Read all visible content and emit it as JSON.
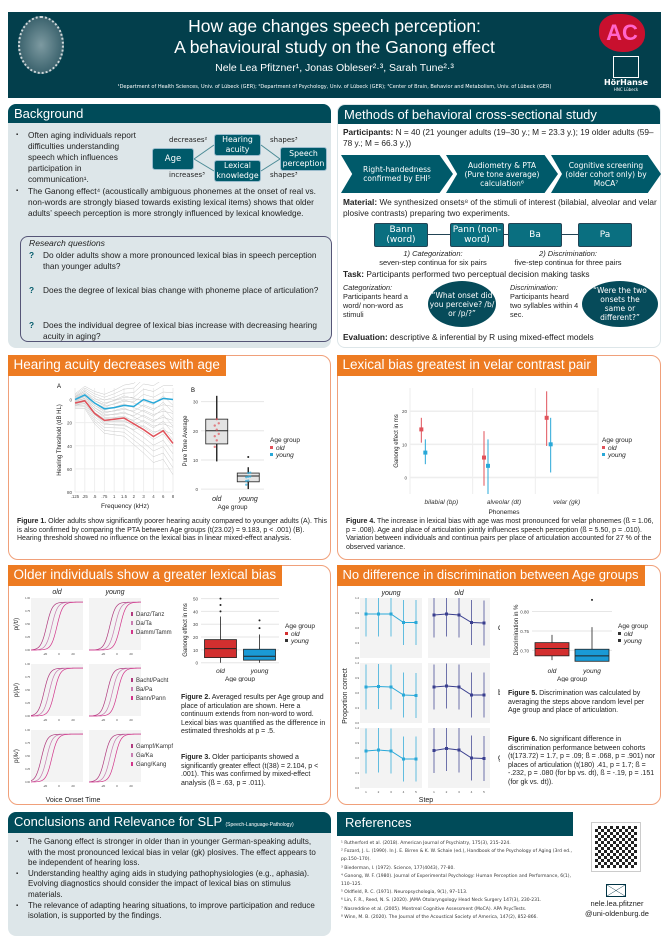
{
  "header": {
    "title_line1": "How age changes speech perception:",
    "title_line2": "A behavioural study on the Ganong effect",
    "authors": "Nele Lea Pfitzner¹, Jonas Obleser²·³, Sarah Tune²·³",
    "affiliations": "¹Department of Health Sciences, Univ. of Lübeck (GER); ²Department of Psychology, Univ. of Lübeck (GER); ³Center of Brain, Behavior and Metabolism, Univ. of Lübeck (GER)",
    "logo_left": "Universitas Lubecensis seal",
    "logo_right_ac": "AC",
    "logo_right_name": "HörHanse",
    "logo_right_sub": "HNC Lübeck"
  },
  "background": {
    "title": "Background",
    "bullets": [
      "Often aging individuals report difficulties understanding speech which influences participation in communication¹.",
      "The Ganong effect⁴ (acoustically ambiguous phonemes at the onset of real vs. non-words are strongly biased towards existing lexical items) shows that older adults’ speech perception is more strongly influenced by lexical knowledge."
    ],
    "diagram": {
      "age": "Age",
      "hearing": "Hearing acuity",
      "lexical": "Lexical knowledge",
      "speech": "Speech perception",
      "decreases": "decreases²",
      "increases": "increases³",
      "shapes_top": "shapes³",
      "shapes_bottom": "shapes³"
    },
    "rq_title": "Research questions",
    "questions": [
      "Do older adults show a more pronounced lexical bias in speech perception than younger adults?",
      "Does the degree of lexical bias change with phoneme place of articulation?",
      "Does the individual degree of lexical bias increase with decreasing hearing acuity in aging?"
    ],
    "q_marker": "?"
  },
  "methods": {
    "title": "Methods of behavioral cross-sectional study",
    "participants_label": "Participants:",
    "participants_text": "N = 40 (21 younger adults (19–30 y.; M = 23.3 y.); 19 older adults (59–78 y.; M = 66.3 y.))",
    "steps": [
      "Right-handedness confirmed by EHI⁵",
      "Audiometry & PTA (Pure tone average) calculation⁶",
      "Cognitive screening (older cohort only) by MoCA⁷"
    ],
    "material_label": "Material:",
    "material_text": "We synthesized onsets⁸ of the stimuli of interest (bilabial, alveolar and velar plosive contrasts) preparing two experiments.",
    "stimuli": [
      "Bann (word)",
      "Pann (non-word)",
      "Ba",
      "Pa"
    ],
    "exp1_title": "1) Categorization:",
    "exp1_desc": "seven-step continua for six pairs",
    "exp2_title": "2) Discrimination:",
    "exp2_desc": "five-step continua for three pairs",
    "task_label": "Task:",
    "task_text": "Participants performed two perceptual decision making tasks",
    "cat_title": "Categorization:",
    "cat_desc": "Participants heard a word/ non-word as stimuli",
    "cat_question": "“What onset did you perceive? /b/ or /p/?”",
    "dis_title": "Discrimination:",
    "dis_desc": "Participants heard two syllables within 4 sec.",
    "dis_question": "“Were the two onsets the same or different?”",
    "eval_label": "Evaluation:",
    "eval_text": "descriptive & inferential by R using mixed-effect models"
  },
  "hearing": {
    "title": "Hearing acuity decreases with age",
    "caption_bold": "Figure 1.",
    "caption": "Older adults show significantly poorer hearing acuity compared to younger adults (A). This is also confirmed by comparing the PTA between Age groups (t(23.02) = 9.183, p < .001) (B). Hearing threshold showed no influence on the lexical bias in linear mixed-effect analysis."
  },
  "lexical": {
    "title": "Lexical bias greatest in velar contrast pair",
    "caption_bold": "Figure 4.",
    "caption": "The increase in lexical bias with age was most pronounced for velar phonemes (ß = 1.06, p = .008). Age and place of articulation jointly influences speech perception (ß = 5.50, p = .010). Variation between individuals and continua pairs per place of articulation accounted for 27 % of the observed variance."
  },
  "older": {
    "title": "Older individuals show a greater lexical bias",
    "fig2_bold": "Figure 2.",
    "fig2": "Averaged results per Age group and place of articulation are shown. Here a continuum extends from non-word to word. Lexical bias was quantified as the difference in estimated thresholds at p = .5.",
    "fig3_bold": "Figure 3.",
    "fig3": "Older participants showed a significantly greater effect (t(38) = 2.104, p < .001). This was confirmed by mixed-effect analysis (ß = .63, p = .011)."
  },
  "discrim": {
    "title": "No difference in discrimination between Age groups",
    "fig5_bold": "Figure 5.",
    "fig5": "Discrimination was calculated by averaging the steps above random level per Age group and place of articulation.",
    "fig6_bold": "Figure 6.",
    "fig6": "No significant difference in discrimination performance between cohorts (t(173.72) = 1.7, p = .09; ß = .068, p = .901) nor places of articulation (t(180) .41, p = 1.7; ß = -.232, p = .080 (for bp vs. dt), ß = -.19, p = .151 (for gk vs. dt))."
  },
  "conclusions": {
    "title": "Conclusions and Relevance for SLP",
    "title_small": "(Speech-Language-Pathology)",
    "bullets": [
      "The Ganong effect is stronger in older than in younger German-speaking adults, with the most pronounced lexical bias in velar (gk) plosives. The effect appears to be independent of hearing loss.",
      "Understanding healthy aging aids in studying pathophysiologies (e.g., aphasia). Evolving diagnostics should consider the impact of lexical bias on stimulus materials.",
      "The relevance of adapting hearing situations, to improve participation and reduce isolation, is supported by the findings."
    ]
  },
  "references": {
    "title": "References",
    "items": [
      "¹ Rutherford et al. (2018). American Journal of Psychiatry, 175(3), 215–224.",
      "² Fozard, J. L. (1990). In J. E. Birren & K. W. Schaie (ed.), Handbook of the Psychology of Aging (3rd ed., pp.150–170).",
      "³ Biederman, I. (1972). Science, 177(4043), 77-80.",
      "⁴ Ganong, W. F. (1980). Journal of Experimental Psychology: Human Perception and Performance, 6(1), 110–125.",
      "⁵ Oldfield, R. C. (1971). Neuropsychologia, 9(1), 97–113.",
      "⁶ Lin, F. R., Reed, N. S. (2020). JAMA Otolaryngology Head Neck Surgery 147(3), 230-231.",
      "⁷ Nasreddine et al. (2005). Montreal Cognitive Assessment (MoCA). APA PsycTests.",
      "⁸ Winn, M. B. (2020). The Journal of the Acoustical Society of America, 147(2), 852-866."
    ],
    "email_icon": "envelope-icon",
    "email_line1": "nele.lea.pfitzner",
    "email_line2": "@uni-oldenburg.de"
  },
  "colors": {
    "teal": "#033f4c",
    "orange": "#ed7b22",
    "old": "#e0525a",
    "young": "#29a8d8",
    "old_box": "#d32f2f",
    "young_box": "#1a9ad6",
    "old_dark": "#3a3f8f"
  },
  "chart_data": [
    {
      "id": "fig1a",
      "type": "line",
      "panel_label": "A",
      "xlabel": "Frequency (kHz)",
      "ylabel": "Hearing Threshold (dB HL)",
      "x_ticks": [
        ".125",
        ".25",
        ".5",
        ".75",
        "1",
        "1.5",
        "2",
        "3",
        "4",
        "6",
        "8"
      ],
      "y_ticks": [
        "0",
        "20",
        "40",
        "60",
        "80"
      ],
      "ylim": [
        -10,
        80
      ],
      "y_reversed": true,
      "series": [
        {
          "name": "old",
          "values": [
            3,
            1,
            12,
            18,
            17,
            16,
            21,
            26,
            32,
            27,
            38
          ]
        },
        {
          "name": "young",
          "values": [
            0,
            -4,
            3,
            8,
            7,
            5,
            6,
            0,
            3,
            -1,
            0
          ]
        }
      ]
    },
    {
      "id": "fig1b",
      "type": "box",
      "panel_label": "B",
      "xlabel": "Age group",
      "ylabel": "Pure Tone Average",
      "categories": [
        "old",
        "young"
      ],
      "y_ticks": [
        "0",
        "10",
        "20",
        "30"
      ],
      "ylim": [
        -1,
        34
      ],
      "boxes": [
        {
          "name": "old",
          "min": 9.5,
          "q1": 15.5,
          "median": 20,
          "q3": 24,
          "max": 32,
          "outliers": []
        },
        {
          "name": "young",
          "min": 0,
          "q1": 2.5,
          "median": 4.5,
          "q3": 5.5,
          "max": 7.5,
          "outliers": [
            11
          ]
        }
      ],
      "legend_title": "Age group",
      "legend": [
        "old",
        "young"
      ]
    },
    {
      "id": "fig4",
      "type": "pointrange",
      "xlabel": "Phonemes",
      "ylabel": "Ganong effect in ms",
      "categories": [
        "bilabial (bp)",
        "alveolar (dt)",
        "velar (gk)"
      ],
      "y_ticks": [
        "0",
        "10",
        "20"
      ],
      "ylim": [
        -5,
        27
      ],
      "series": [
        {
          "name": "old",
          "values": [
            14.5,
            6,
            18
          ],
          "lower": [
            10.5,
            -2.5,
            9.5
          ],
          "upper": [
            18,
            14,
            26
          ]
        },
        {
          "name": "young",
          "values": [
            7.5,
            3.5,
            10
          ],
          "lower": [
            4,
            -5,
            1.5
          ],
          "upper": [
            11.5,
            11.5,
            18
          ]
        }
      ],
      "legend_title": "Age group",
      "legend": [
        "old",
        "young"
      ]
    },
    {
      "id": "fig2",
      "type": "line",
      "xlabel": "Voice Onset Time",
      "facets_cols": [
        "old",
        "young"
      ],
      "facets_rows": [
        "p(/t/)",
        "p(/p/)",
        "p(/k/)"
      ],
      "x_ticks": [
        "-20",
        "0",
        "20"
      ],
      "y_ticks": [
        "0.00",
        "0.25",
        "0.50",
        "0.75",
        "1.00"
      ],
      "legends": [
        [
          "Danz/Tanz",
          "Da/Ta",
          "Damm/Tamm"
        ],
        [
          "Bacht/Pacht",
          "Ba/Pa",
          "Bann/Pann"
        ],
        [
          "Gampf/Kampf",
          "Ga/Ka",
          "Gang/Kang"
        ]
      ]
    },
    {
      "id": "fig3",
      "type": "box",
      "xlabel": "Age group",
      "ylabel": "Ganong effect in ms",
      "categories": [
        "old",
        "young"
      ],
      "y_ticks": [
        "0",
        "10",
        "20",
        "30",
        "40",
        "50"
      ],
      "ylim": [
        -1,
        52
      ],
      "boxes": [
        {
          "name": "old",
          "min": 0,
          "q1": 4,
          "median": 11,
          "q3": 18,
          "max": 36,
          "outliers": [
            40,
            45,
            50
          ]
        },
        {
          "name": "young",
          "min": 0,
          "q1": 2,
          "median": 5,
          "q3": 10.5,
          "max": 22,
          "outliers": [
            27,
            33
          ]
        }
      ],
      "legend_title": "Age group",
      "legend": [
        "old",
        "young"
      ]
    },
    {
      "id": "fig6",
      "type": "line",
      "xlabel": "Step",
      "ylabel": "Proportion correct",
      "facets_cols": [
        "young",
        "old"
      ],
      "facets_rows": [
        "dt",
        "bp",
        "gk"
      ],
      "x_ticks": [
        "1",
        "2",
        "3",
        "4",
        "5"
      ],
      "y_ticks": [
        "0.0",
        "0.3",
        "0.6",
        "0.9",
        "1.2"
      ],
      "ylim": [
        0,
        1.2
      ],
      "series": {
        "young": {
          "dt": [
            0.88,
            0.88,
            0.88,
            0.71,
            0.71
          ],
          "bp": [
            0.72,
            0.73,
            0.72,
            0.56,
            0.55
          ],
          "gk": [
            0.74,
            0.76,
            0.74,
            0.58,
            0.58
          ]
        },
        "old": {
          "dt": [
            0.86,
            0.88,
            0.86,
            0.71,
            0.7
          ],
          "bp": [
            0.72,
            0.74,
            0.72,
            0.56,
            0.56
          ],
          "gk": [
            0.75,
            0.79,
            0.76,
            0.6,
            0.59
          ]
        }
      },
      "error": 0.45
    },
    {
      "id": "fig5",
      "type": "box",
      "xlabel": "Age group",
      "ylabel": "Discrimination in %",
      "categories": [
        "old",
        "young"
      ],
      "y_ticks": [
        "0.70",
        "0.75",
        "0.80"
      ],
      "ylim": [
        0.665,
        0.84
      ],
      "boxes": [
        {
          "name": "old",
          "min": 0.675,
          "q1": 0.686,
          "median": 0.705,
          "q3": 0.72,
          "max": 0.74,
          "outliers": []
        },
        {
          "name": "young",
          "min": 0.672,
          "q1": 0.672,
          "median": 0.686,
          "q3": 0.703,
          "max": 0.76,
          "outliers": [
            0.83
          ]
        }
      ],
      "legend_title": "Age group",
      "legend": [
        "old",
        "young"
      ]
    }
  ]
}
